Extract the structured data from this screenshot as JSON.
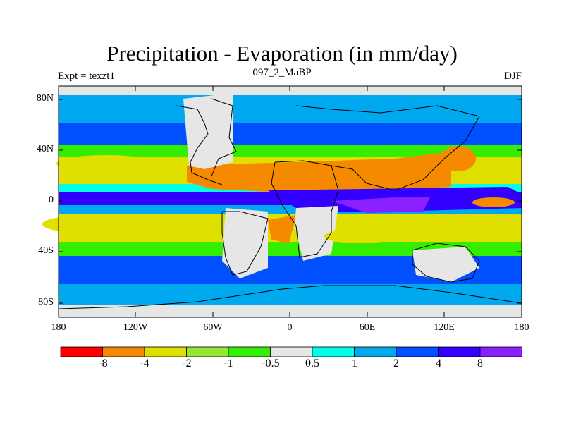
{
  "figure": {
    "title": "Precipitation - Evaporation (in mm/day)",
    "left_label": "Expt = texzt1",
    "center_label": "097_2_MaBP",
    "right_label": "DJF"
  },
  "axes": {
    "lat_ticks": [
      "80N",
      "40N",
      "0",
      "40S",
      "80S"
    ],
    "lon_ticks": [
      "180",
      "120W",
      "60W",
      "0",
      "60E",
      "120E",
      "180"
    ]
  },
  "colorbar": {
    "colors": [
      "#ff0000",
      "#f58a00",
      "#e0e000",
      "#99e632",
      "#33ee00",
      "#e6e6e6",
      "#00ffe6",
      "#00a8f0",
      "#0050ff",
      "#3300ff",
      "#8a1fff"
    ],
    "labels": [
      "-8",
      "-4",
      "-2",
      "-1",
      "-0.5",
      "0.5",
      "1",
      "2",
      "4",
      "8"
    ]
  },
  "style": {
    "land_outline": "#000000"
  }
}
